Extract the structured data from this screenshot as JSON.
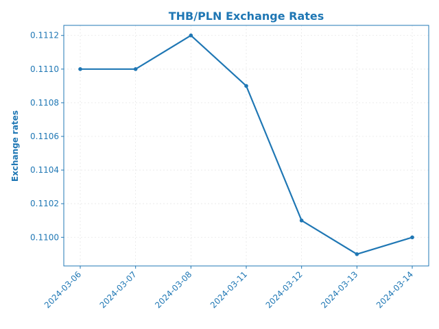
{
  "colors": {
    "accent": "#1f77b4",
    "grid": "#e6e6e6",
    "background": "#ffffff"
  },
  "chart_data": {
    "type": "line",
    "title": "THB/PLN Exchange Rates",
    "xlabel": "",
    "ylabel": "Exchange rates",
    "categories": [
      "2024-03-06",
      "2024-03-07",
      "2024-03-08",
      "2024-03-11",
      "2024-03-12",
      "2024-03-13",
      "2024-03-14"
    ],
    "series": [
      {
        "values": [
          0.111,
          0.111,
          0.1112,
          0.1109,
          0.1101,
          0.1099,
          0.11
        ]
      }
    ],
    "yticks": [
      "0.1100",
      "0.1102",
      "0.1104",
      "0.1106",
      "0.1108",
      "0.1110",
      "0.1112"
    ],
    "ylim": [
      0.10983,
      0.11126
    ],
    "grid": true,
    "markers": true,
    "legend": "none"
  }
}
